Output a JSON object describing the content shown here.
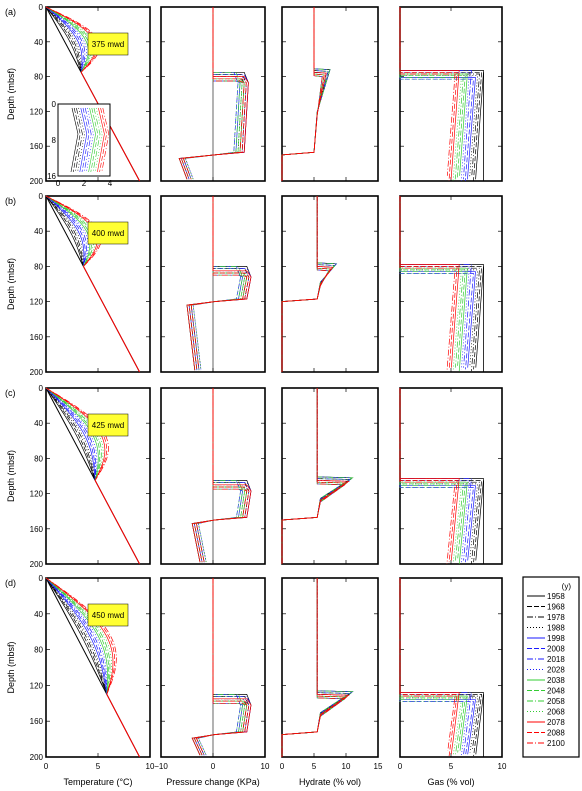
{
  "colors": {
    "1958": "#000000",
    "1968": "#000000",
    "1978": "#000000",
    "1988": "#000000",
    "1998": "#1a1aff",
    "2008": "#1a1aff",
    "2018": "#1a1aff",
    "2028": "#1a1aff",
    "2038": "#33cc33",
    "2048": "#33cc33",
    "2058": "#33cc33",
    "2068": "#33cc33",
    "2078": "#ff0000",
    "2088": "#ff0000",
    "2100": "#ff0000",
    "depth_label_bg": "#ffff33"
  },
  "legend": {
    "unit": "(y)",
    "years": [
      "1958",
      "1968",
      "1978",
      "1988",
      "1998",
      "2008",
      "2018",
      "2028",
      "2038",
      "2048",
      "2058",
      "2068",
      "2078",
      "2088",
      "2100"
    ]
  },
  "axes": {
    "y_label": "Depth (mbsf)",
    "y_ticks": [
      "0",
      "40",
      "80",
      "120",
      "160",
      "200"
    ],
    "x_labels": [
      "Temperature (°C)",
      "Pressure change (KPa)",
      "Hydrate (% vol)",
      "Gas (% vol)"
    ],
    "x_ticks": [
      [
        "0",
        "5",
        "10"
      ],
      [
        "−10",
        "0",
        "10"
      ],
      [
        "0",
        "5",
        "10",
        "15"
      ],
      [
        "0",
        "5",
        "10"
      ]
    ]
  },
  "inset": {
    "y_ticks": [
      "0",
      "8",
      "16"
    ],
    "x_ticks": [
      "0",
      "2",
      "4"
    ]
  },
  "rows": [
    {
      "label": "(a)",
      "depth": "375 mwd"
    },
    {
      "label": "(b)",
      "depth": "400 mwd"
    },
    {
      "label": "(c)",
      "depth": "425 mwd"
    },
    {
      "label": "(d)",
      "depth": "450 mwd"
    }
  ],
  "chart_data": {
    "type": "line",
    "ylim": [
      200,
      0
    ],
    "xlims": {
      "temperature": [
        0,
        10
      ],
      "pressure": [
        -10,
        10
      ],
      "hydrate": [
        0,
        15
      ],
      "gas": [
        0,
        10
      ]
    },
    "profiles": [
      {
        "row": "(a)",
        "hsz_top": 75,
        "bgz_bottom": 170,
        "temperature_line": [
          [
            0,
            0
          ],
          [
            9,
            200
          ]
        ],
        "pressure_max": 6,
        "pressure_min": -6.5,
        "hydrate_base": 5,
        "hydrate_peak": 7.5,
        "gas_deep": 8.2,
        "gas_steady": 5.4
      },
      {
        "row": "(b)",
        "hsz_top": 80,
        "bgz_bottom": 120,
        "temperature_line": [
          [
            0,
            0
          ],
          [
            9,
            200
          ]
        ],
        "pressure_max": 6.5,
        "pressure_min": -5,
        "hydrate_base": 5.5,
        "hydrate_peak": 8.5,
        "gas_deep": 8.2,
        "gas_steady": 5.4
      },
      {
        "row": "(c)",
        "hsz_top": 105,
        "bgz_bottom": 150,
        "temperature_line": [
          [
            0,
            0
          ],
          [
            9,
            200
          ]
        ],
        "pressure_max": 6.5,
        "pressure_min": -4,
        "hydrate_base": 5.5,
        "hydrate_peak": 11,
        "gas_deep": 8.2,
        "gas_steady": 5.4
      },
      {
        "row": "(d)",
        "hsz_top": 130,
        "bgz_bottom": 175,
        "temperature_line": [
          [
            0,
            0
          ],
          [
            9,
            200
          ]
        ],
        "pressure_max": 6.5,
        "pressure_min": -4,
        "hydrate_base": 5.5,
        "hydrate_peak": 11,
        "gas_deep": 8.2,
        "gas_steady": 5.4
      }
    ]
  }
}
